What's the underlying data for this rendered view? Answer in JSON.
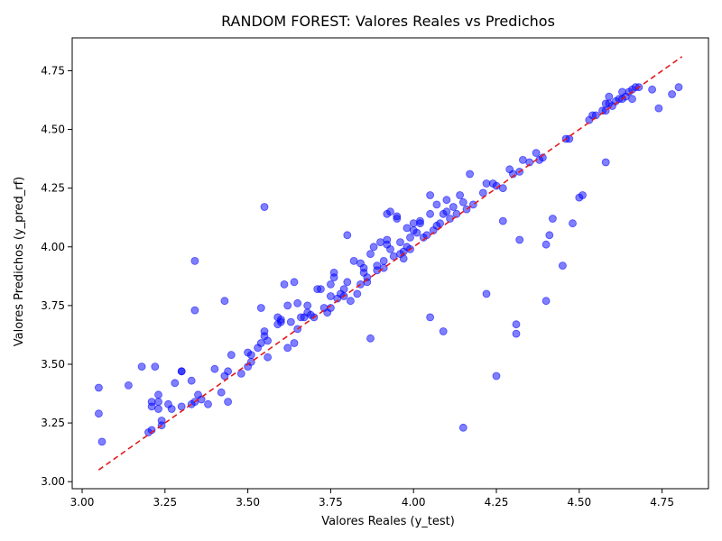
{
  "chart_data": {
    "type": "scatter",
    "title": "RANDOM FOREST: Valores Reales vs Predichos",
    "xlabel": "Valores Reales (y_test)",
    "ylabel": "Valores Predichos (y_pred_rf)",
    "xlim": [
      2.97,
      4.89
    ],
    "ylim": [
      2.97,
      4.89
    ],
    "xticks": [
      "3.00",
      "3.25",
      "3.50",
      "3.75",
      "4.00",
      "4.25",
      "4.50",
      "4.75"
    ],
    "yticks": [
      "3.00",
      "3.25",
      "3.50",
      "3.75",
      "4.00",
      "4.25",
      "4.50",
      "4.75"
    ],
    "grid": false,
    "point_color": "#0000ff",
    "line_color": "#e41a1c",
    "reference_line": {
      "from": [
        3.05,
        3.05
      ],
      "to": [
        4.81,
        4.81
      ]
    },
    "points": [
      [
        3.05,
        3.4
      ],
      [
        3.05,
        3.29
      ],
      [
        3.06,
        3.17
      ],
      [
        3.14,
        3.41
      ],
      [
        3.18,
        3.49
      ],
      [
        3.2,
        3.21
      ],
      [
        3.21,
        3.22
      ],
      [
        3.21,
        3.34
      ],
      [
        3.21,
        3.32
      ],
      [
        3.22,
        3.49
      ],
      [
        3.23,
        3.34
      ],
      [
        3.23,
        3.31
      ],
      [
        3.23,
        3.37
      ],
      [
        3.24,
        3.26
      ],
      [
        3.24,
        3.24
      ],
      [
        3.26,
        3.33
      ],
      [
        3.27,
        3.31
      ],
      [
        3.28,
        3.42
      ],
      [
        3.3,
        3.47
      ],
      [
        3.3,
        3.32
      ],
      [
        3.3,
        3.47
      ],
      [
        3.33,
        3.43
      ],
      [
        3.33,
        3.33
      ],
      [
        3.34,
        3.34
      ],
      [
        3.34,
        3.94
      ],
      [
        3.34,
        3.73
      ],
      [
        3.35,
        3.37
      ],
      [
        3.36,
        3.35
      ],
      [
        3.38,
        3.33
      ],
      [
        3.4,
        3.48
      ],
      [
        3.42,
        3.38
      ],
      [
        3.43,
        3.77
      ],
      [
        3.43,
        3.45
      ],
      [
        3.44,
        3.47
      ],
      [
        3.44,
        3.34
      ],
      [
        3.45,
        3.54
      ],
      [
        3.48,
        3.46
      ],
      [
        3.5,
        3.49
      ],
      [
        3.5,
        3.55
      ],
      [
        3.51,
        3.51
      ],
      [
        3.51,
        3.54
      ],
      [
        3.53,
        3.57
      ],
      [
        3.54,
        3.59
      ],
      [
        3.54,
        3.74
      ],
      [
        3.55,
        4.17
      ],
      [
        3.55,
        3.64
      ],
      [
        3.55,
        3.62
      ],
      [
        3.56,
        3.6
      ],
      [
        3.56,
        3.53
      ],
      [
        3.59,
        3.7
      ],
      [
        3.59,
        3.67
      ],
      [
        3.6,
        3.68
      ],
      [
        3.6,
        3.69
      ],
      [
        3.61,
        3.84
      ],
      [
        3.62,
        3.57
      ],
      [
        3.62,
        3.75
      ],
      [
        3.63,
        3.68
      ],
      [
        3.64,
        3.59
      ],
      [
        3.64,
        3.85
      ],
      [
        3.65,
        3.76
      ],
      [
        3.65,
        3.65
      ],
      [
        3.66,
        3.7
      ],
      [
        3.67,
        3.7
      ],
      [
        3.68,
        3.75
      ],
      [
        3.68,
        3.72
      ],
      [
        3.69,
        3.71
      ],
      [
        3.7,
        3.7
      ],
      [
        3.71,
        3.82
      ],
      [
        3.72,
        3.82
      ],
      [
        3.73,
        3.74
      ],
      [
        3.74,
        3.72
      ],
      [
        3.75,
        3.84
      ],
      [
        3.75,
        3.79
      ],
      [
        3.75,
        3.74
      ],
      [
        3.76,
        3.89
      ],
      [
        3.76,
        3.87
      ],
      [
        3.77,
        3.78
      ],
      [
        3.78,
        3.8
      ],
      [
        3.79,
        3.82
      ],
      [
        3.79,
        3.79
      ],
      [
        3.8,
        3.85
      ],
      [
        3.8,
        4.05
      ],
      [
        3.81,
        3.77
      ],
      [
        3.82,
        3.94
      ],
      [
        3.83,
        3.8
      ],
      [
        3.84,
        3.84
      ],
      [
        3.84,
        3.93
      ],
      [
        3.85,
        3.89
      ],
      [
        3.85,
        3.91
      ],
      [
        3.86,
        3.87
      ],
      [
        3.86,
        3.85
      ],
      [
        3.87,
        3.61
      ],
      [
        3.87,
        3.97
      ],
      [
        3.88,
        4.0
      ],
      [
        3.89,
        3.9
      ],
      [
        3.89,
        3.92
      ],
      [
        3.9,
        4.02
      ],
      [
        3.91,
        3.94
      ],
      [
        3.91,
        3.91
      ],
      [
        3.92,
        4.01
      ],
      [
        3.92,
        4.03
      ],
      [
        3.92,
        4.14
      ],
      [
        3.93,
        3.99
      ],
      [
        3.93,
        4.15
      ],
      [
        3.94,
        3.96
      ],
      [
        3.95,
        4.12
      ],
      [
        3.95,
        4.13
      ],
      [
        3.96,
        3.97
      ],
      [
        3.96,
        4.02
      ],
      [
        3.97,
        3.95
      ],
      [
        3.97,
        3.98
      ],
      [
        3.98,
        4.08
      ],
      [
        3.98,
        4.0
      ],
      [
        3.99,
        3.99
      ],
      [
        3.99,
        4.04
      ],
      [
        4.0,
        4.1
      ],
      [
        4.0,
        4.07
      ],
      [
        4.01,
        4.06
      ],
      [
        4.02,
        4.11
      ],
      [
        4.02,
        4.1
      ],
      [
        4.03,
        4.04
      ],
      [
        4.04,
        4.05
      ],
      [
        4.05,
        3.7
      ],
      [
        4.05,
        4.22
      ],
      [
        4.05,
        4.14
      ],
      [
        4.06,
        4.07
      ],
      [
        4.07,
        4.09
      ],
      [
        4.07,
        4.18
      ],
      [
        4.08,
        4.1
      ],
      [
        4.09,
        4.14
      ],
      [
        4.09,
        3.64
      ],
      [
        4.1,
        4.2
      ],
      [
        4.1,
        4.15
      ],
      [
        4.11,
        4.12
      ],
      [
        4.12,
        4.17
      ],
      [
        4.13,
        4.14
      ],
      [
        4.14,
        4.22
      ],
      [
        4.15,
        4.19
      ],
      [
        4.15,
        3.23
      ],
      [
        4.16,
        4.16
      ],
      [
        4.17,
        4.31
      ],
      [
        4.18,
        4.18
      ],
      [
        4.21,
        4.23
      ],
      [
        4.22,
        3.8
      ],
      [
        4.22,
        4.27
      ],
      [
        4.24,
        4.27
      ],
      [
        4.25,
        3.45
      ],
      [
        4.25,
        4.26
      ],
      [
        4.27,
        4.25
      ],
      [
        4.27,
        4.11
      ],
      [
        4.29,
        4.33
      ],
      [
        4.3,
        4.31
      ],
      [
        4.31,
        3.67
      ],
      [
        4.31,
        3.63
      ],
      [
        4.32,
        4.03
      ],
      [
        4.32,
        4.32
      ],
      [
        4.33,
        4.37
      ],
      [
        4.35,
        4.36
      ],
      [
        4.37,
        4.4
      ],
      [
        4.38,
        4.37
      ],
      [
        4.39,
        4.38
      ],
      [
        4.4,
        3.77
      ],
      [
        4.4,
        4.01
      ],
      [
        4.41,
        4.05
      ],
      [
        4.42,
        4.12
      ],
      [
        4.45,
        3.92
      ],
      [
        4.46,
        4.46
      ],
      [
        4.47,
        4.46
      ],
      [
        4.48,
        4.1
      ],
      [
        4.5,
        4.21
      ],
      [
        4.51,
        4.22
      ],
      [
        4.53,
        4.54
      ],
      [
        4.54,
        4.56
      ],
      [
        4.55,
        4.56
      ],
      [
        4.57,
        4.58
      ],
      [
        4.58,
        4.61
      ],
      [
        4.58,
        4.36
      ],
      [
        4.58,
        4.58
      ],
      [
        4.59,
        4.61
      ],
      [
        4.59,
        4.64
      ],
      [
        4.6,
        4.6
      ],
      [
        4.61,
        4.62
      ],
      [
        4.62,
        4.63
      ],
      [
        4.63,
        4.63
      ],
      [
        4.63,
        4.66
      ],
      [
        4.64,
        4.64
      ],
      [
        4.65,
        4.66
      ],
      [
        4.66,
        4.63
      ],
      [
        4.66,
        4.67
      ],
      [
        4.67,
        4.68
      ],
      [
        4.68,
        4.68
      ],
      [
        4.72,
        4.67
      ],
      [
        4.74,
        4.59
      ],
      [
        4.78,
        4.65
      ],
      [
        4.8,
        4.68
      ]
    ]
  }
}
